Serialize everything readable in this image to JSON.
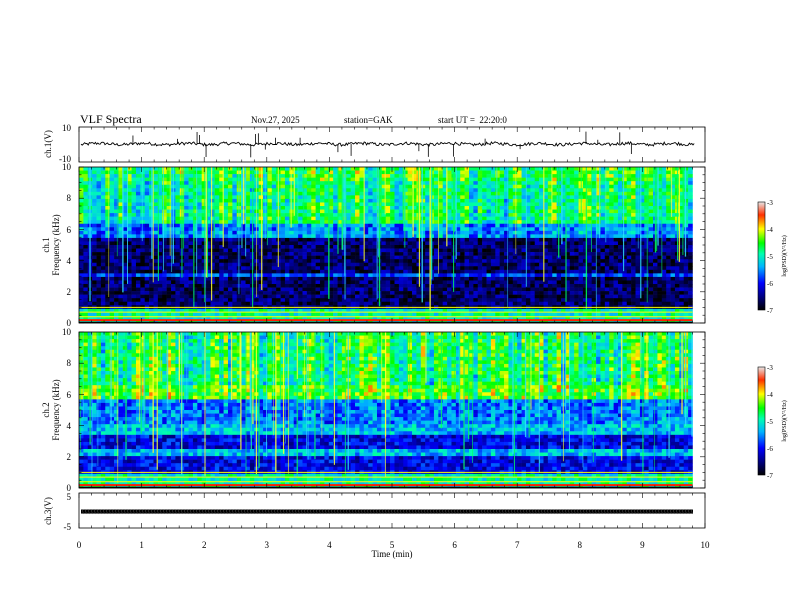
{
  "header": {
    "title": "VLF Spectra",
    "date": "Nov.27, 2025",
    "station": "station=GAK",
    "start": "start UT =  22:20:0"
  },
  "chart_data": [
    {
      "type": "line",
      "panel": "ch1-waveform",
      "ylabel": "ch.1(V)",
      "ylim": [
        -10,
        10
      ],
      "yticks": [
        "10",
        "-10"
      ],
      "baseline": 0.3,
      "xlim": [
        0,
        10
      ]
    },
    {
      "type": "heatmap",
      "panel": "ch1-spectrogram",
      "ylabel_top": "ch.1",
      "ylabel": "Frequency (kHz)",
      "ylim": [
        0,
        10
      ],
      "yticks": [
        "0",
        "2",
        "4",
        "6",
        "8",
        "10"
      ],
      "xlim": [
        0,
        9.8
      ],
      "data_end": 9.8,
      "colorbar": {
        "label": "log(PSD)(V²/Hz)",
        "range": [
          -7,
          -3
        ],
        "ticks": [
          "-3",
          "-4",
          "-5",
          "-6",
          "-7"
        ]
      }
    },
    {
      "type": "heatmap",
      "panel": "ch2-spectrogram",
      "ylabel_top": "ch.2",
      "ylabel": "Frequency (kHz)",
      "ylim": [
        0,
        10
      ],
      "yticks": [
        "0",
        "2",
        "4",
        "6",
        "8",
        "10"
      ],
      "xlim": [
        0,
        9.8
      ],
      "data_end": 9.8,
      "colorbar": {
        "label": "log(PSD)(V²/Hz)",
        "range": [
          -7,
          -3
        ],
        "ticks": [
          "-3",
          "-4",
          "-5",
          "-6",
          "-7"
        ]
      }
    },
    {
      "type": "line",
      "panel": "ch3-waveform",
      "ylabel": "ch.3(V)",
      "ylim": [
        -5,
        5
      ],
      "yticks": [
        "5",
        "-5"
      ],
      "baseline": -0.3,
      "xlim": [
        0,
        10
      ]
    }
  ],
  "xaxis": {
    "label": "Time (min)",
    "ticks": [
      "0",
      "1",
      "2",
      "3",
      "4",
      "5",
      "6",
      "7",
      "8",
      "9",
      "10"
    ],
    "range": [
      0,
      10
    ]
  }
}
